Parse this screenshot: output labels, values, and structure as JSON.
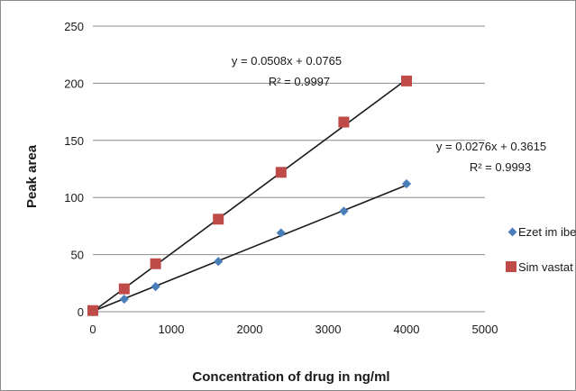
{
  "chart_data": {
    "type": "scatter",
    "title": "",
    "xlabel": "Concentration  of drug in ng/ml",
    "ylabel": "Peak area",
    "xlim": [
      0,
      5000
    ],
    "ylim": [
      0,
      250
    ],
    "xticks": [
      0,
      1000,
      2000,
      3000,
      4000,
      5000
    ],
    "yticks": [
      0,
      50,
      100,
      150,
      200,
      250
    ],
    "grid": "horizontal",
    "legend_placement": "right",
    "series": [
      {
        "name": "Ezetimibe",
        "label": "Ezet im ibe",
        "marker": "diamond",
        "color": "#4a7ebb",
        "x": [
          0,
          400,
          800,
          1600,
          2400,
          3200,
          4000
        ],
        "y": [
          0,
          11,
          22,
          44,
          69,
          88,
          112
        ],
        "trendline": {
          "slope": 0.0276,
          "intercept": 0.3615,
          "equation": "y = 0.0276x + 0.3615",
          "r2": "R² = 0.9993"
        }
      },
      {
        "name": "Simvastatin",
        "label": "Sim vastat in",
        "marker": "square",
        "color": "#be4b48",
        "x": [
          0,
          400,
          800,
          1600,
          2400,
          3200,
          4000
        ],
        "y": [
          1,
          20,
          42,
          81,
          122,
          166,
          202
        ],
        "trendline": {
          "slope": 0.0508,
          "intercept": 0.0765,
          "equation": "y = 0.0508x + 0.0765",
          "r2": "R² = 0.9997"
        }
      }
    ]
  }
}
